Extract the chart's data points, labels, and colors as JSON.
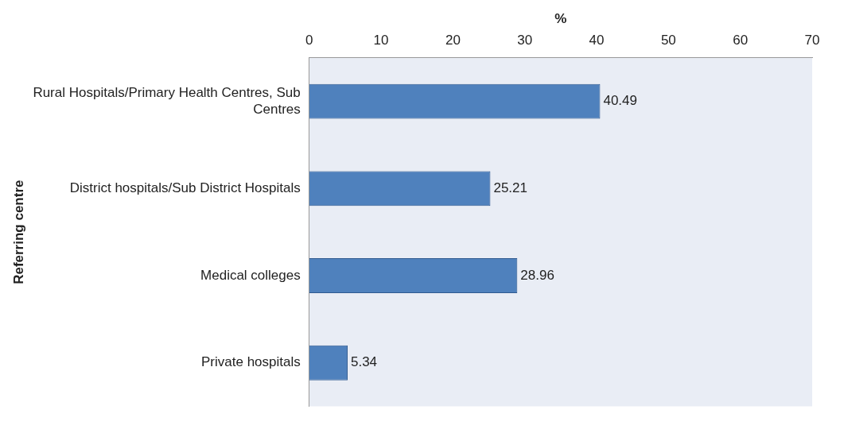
{
  "chart_data": {
    "type": "bar",
    "orientation": "horizontal",
    "categories": [
      "Rural Hospitals/Primary Health Centres, Sub Centres",
      "District hospitals/Sub District Hospitals",
      "Medical colleges",
      "Private hospitals"
    ],
    "values": [
      40.49,
      25.21,
      28.96,
      5.34
    ],
    "color": "#4f81bd",
    "xlabel": "%",
    "ylabel": "Referring centre",
    "xlim": [
      0,
      70
    ],
    "xticks": [
      0,
      10,
      20,
      30,
      40,
      50,
      60,
      70
    ],
    "data_labels": true,
    "grid": false,
    "legend": false
  }
}
